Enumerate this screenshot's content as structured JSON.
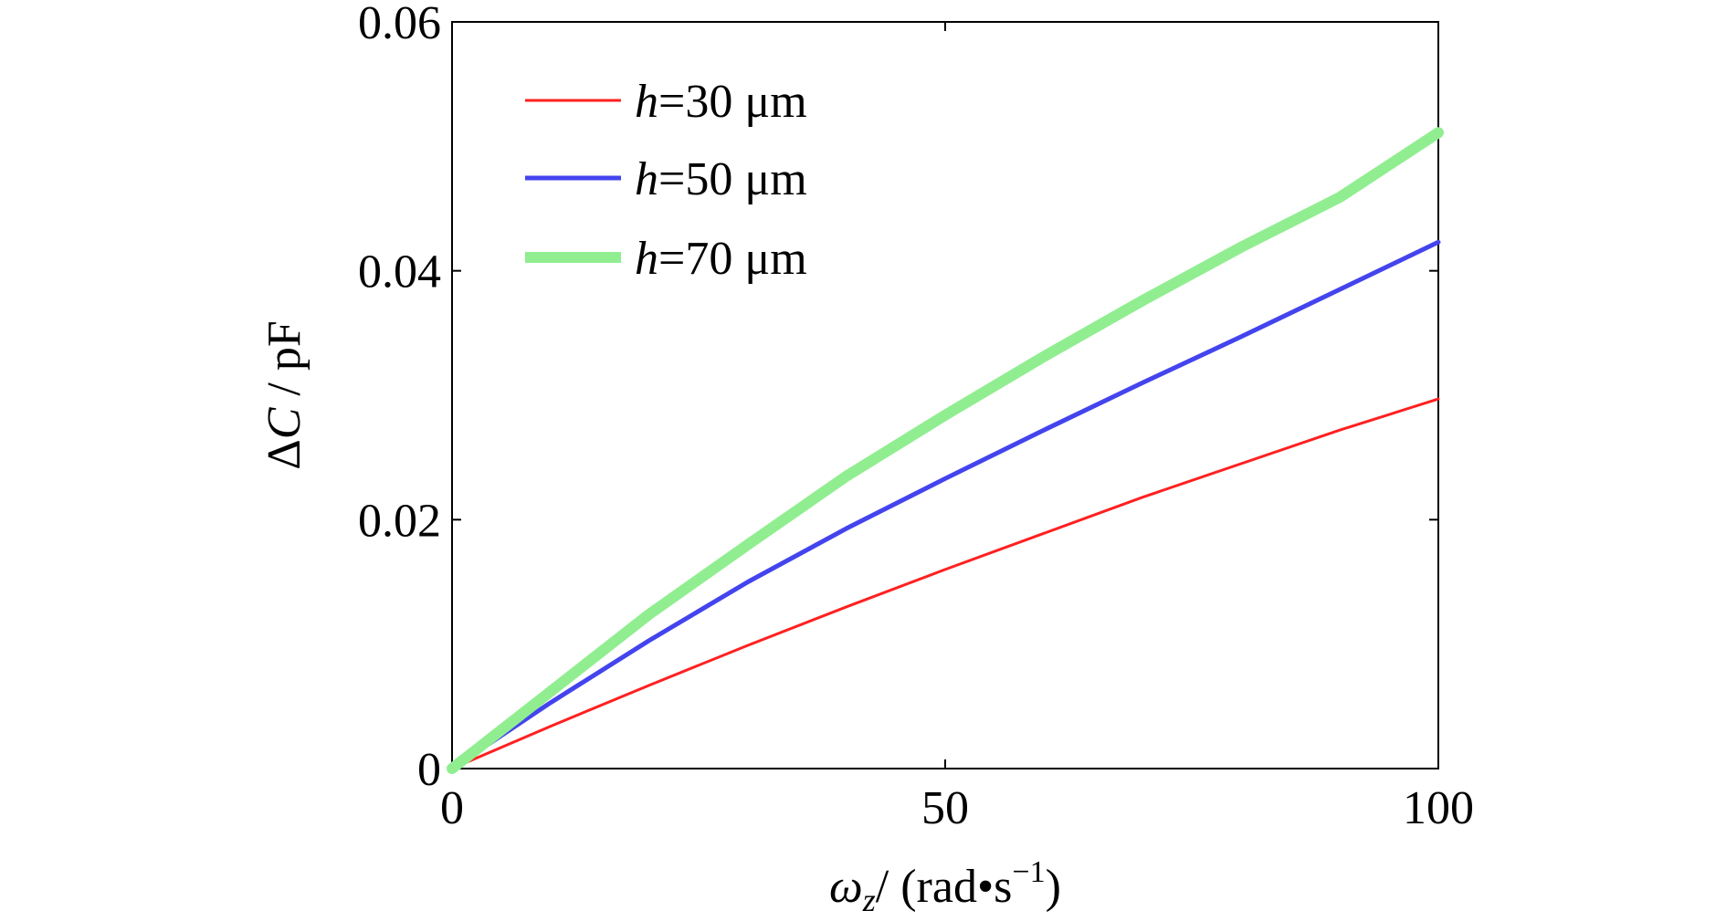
{
  "chart_data": {
    "type": "line",
    "title": "",
    "xlabel": {
      "symbol": "ω",
      "subscript": "z",
      "unit_prefix": "/ (rad",
      "dot": "•",
      "unit_s": "s",
      "exponent": "−1",
      "close": ")"
    },
    "ylabel": {
      "delta": "Δ",
      "symbol": "C",
      "unit": " / pF"
    },
    "xlim": [
      0,
      100
    ],
    "ylim": [
      0,
      0.06
    ],
    "xticks": [
      0,
      50,
      100
    ],
    "xtick_labels": [
      "0",
      "50",
      "100"
    ],
    "yticks": [
      0,
      0.02,
      0.04,
      0.06
    ],
    "ytick_labels": [
      "0",
      "0.02",
      "0.04",
      "0.06"
    ],
    "grid": false,
    "legend_position": "top-left",
    "series": [
      {
        "legend_var": "h",
        "legend_value": "=30",
        "legend_unit": " μm",
        "color": "#ff2020",
        "x": [
          0,
          10,
          20,
          30,
          40,
          50,
          60,
          70,
          80,
          90,
          100
        ],
        "y": [
          0,
          0.0034,
          0.0067,
          0.0099,
          0.013,
          0.016,
          0.0189,
          0.0218,
          0.0245,
          0.0272,
          0.0297
        ]
      },
      {
        "legend_var": "h",
        "legend_value": "=50",
        "legend_unit": " μm",
        "color": "#4444ee",
        "x": [
          0,
          10,
          20,
          30,
          40,
          50,
          60,
          70,
          80,
          90,
          100
        ],
        "y": [
          0,
          0.0053,
          0.0103,
          0.015,
          0.0193,
          0.0233,
          0.0272,
          0.031,
          0.0347,
          0.0385,
          0.0423
        ]
      },
      {
        "legend_var": "h",
        "legend_value": "=70",
        "legend_unit": " μm",
        "color": "#90ee90",
        "x": [
          0,
          10,
          20,
          30,
          40,
          50,
          60,
          70,
          80,
          90,
          100
        ],
        "y": [
          0,
          0.0062,
          0.0124,
          0.018,
          0.0235,
          0.0284,
          0.0331,
          0.0376,
          0.0419,
          0.0459,
          0.0511
        ]
      }
    ]
  }
}
